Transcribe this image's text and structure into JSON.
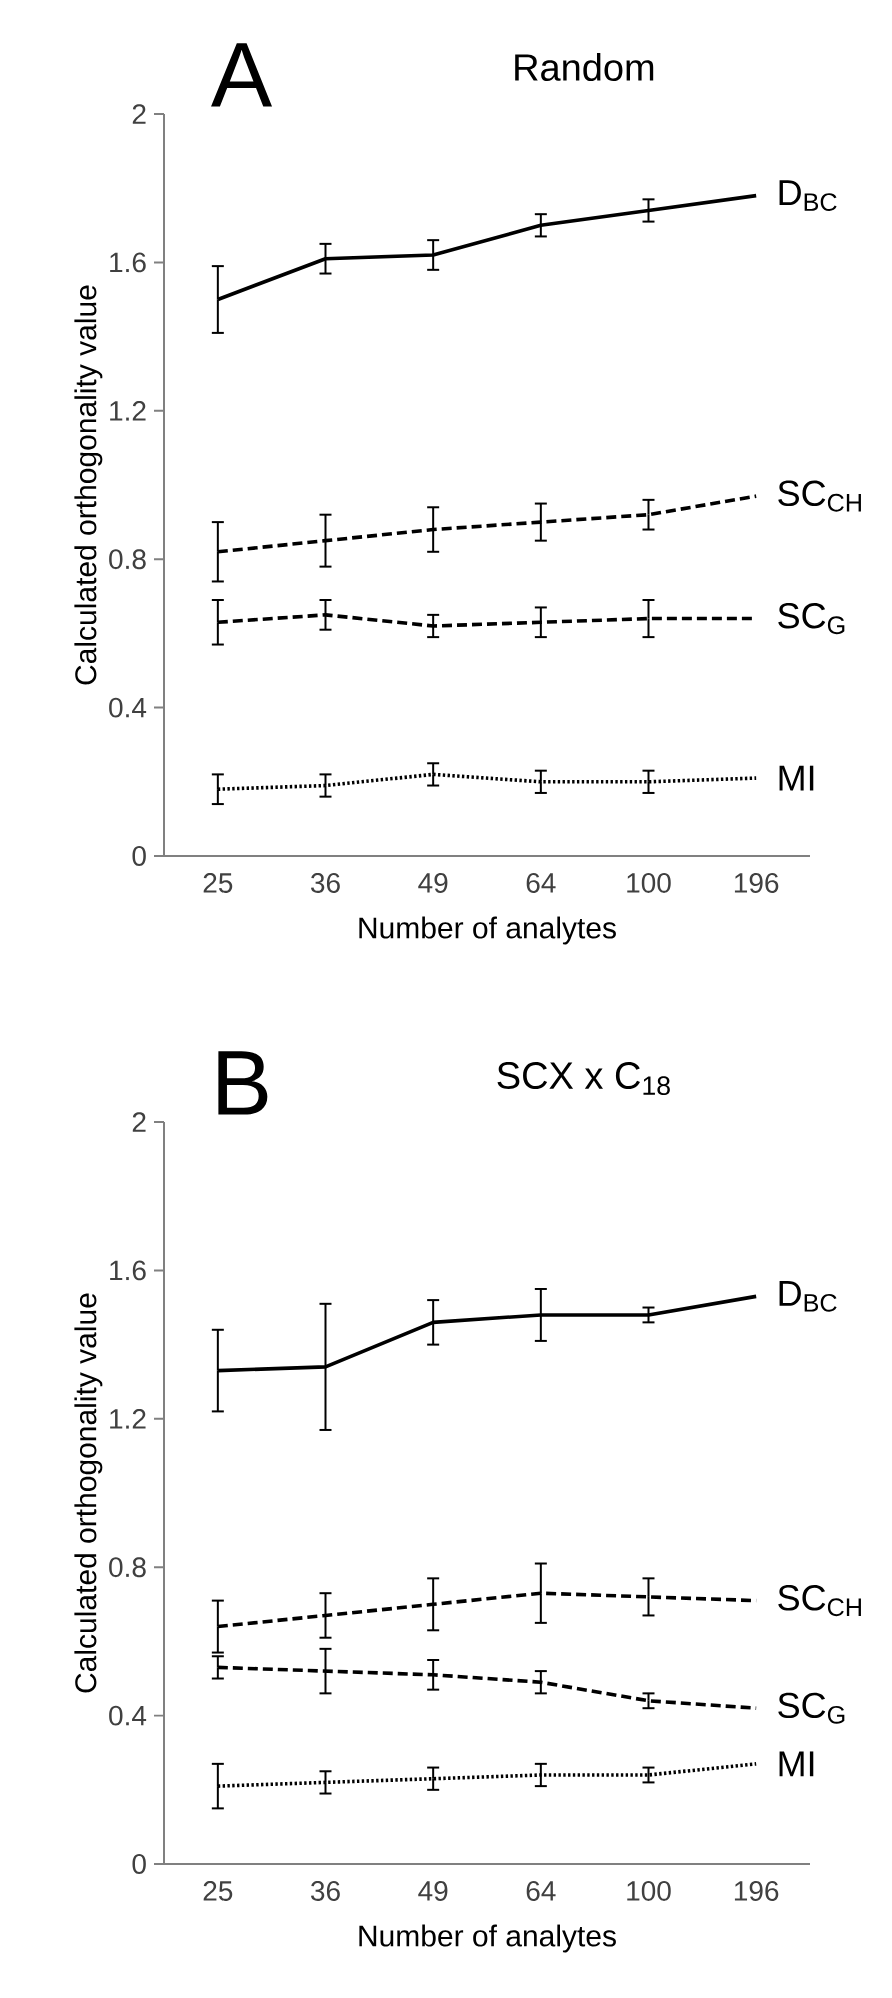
{
  "chart_data": [
    {
      "type": "line",
      "title": "A",
      "subtitle": "Random",
      "xlabel": "Number of analytes",
      "ylabel": "Calculated orthogonality value",
      "categories": [
        "25",
        "36",
        "49",
        "64",
        "100",
        "196"
      ],
      "ylim": [
        0,
        2
      ],
      "yticks": [
        0,
        0.4,
        0.8,
        1.2,
        1.6,
        2
      ],
      "legend": false,
      "grid": false,
      "series": [
        {
          "name": "D$_{BC}$",
          "color": "#000000",
          "line_style": "solid",
          "values": [
            1.5,
            1.61,
            1.62,
            1.7,
            1.74,
            1.78
          ],
          "errors": [
            0.09,
            0.04,
            0.04,
            0.03,
            0.03,
            null
          ]
        },
        {
          "name": "SC$_{CH}$",
          "color": "#000000",
          "line_style": "dashed",
          "values": [
            0.82,
            0.85,
            0.88,
            0.9,
            0.92,
            0.97
          ],
          "errors": [
            0.08,
            0.07,
            0.06,
            0.05,
            0.04,
            null
          ]
        },
        {
          "name": "SC$_{G}$",
          "color": "#000000",
          "line_style": "dashed",
          "values": [
            0.63,
            0.65,
            0.62,
            0.63,
            0.64,
            0.64
          ],
          "errors": [
            0.06,
            0.04,
            0.03,
            0.04,
            0.05,
            null
          ]
        },
        {
          "name": "MI",
          "color": "#000000",
          "line_style": "dotted",
          "values": [
            0.18,
            0.19,
            0.22,
            0.2,
            0.2,
            0.21
          ],
          "errors": [
            0.04,
            0.03,
            0.03,
            0.03,
            0.03,
            null
          ]
        }
      ]
    },
    {
      "type": "line",
      "title": "B",
      "subtitle": "SCX x C$_{18}$",
      "xlabel": "Number of analytes",
      "ylabel": "Calculated orthogonality value",
      "categories": [
        "25",
        "36",
        "49",
        "64",
        "100",
        "196"
      ],
      "ylim": [
        0,
        2
      ],
      "yticks": [
        0,
        0.4,
        0.8,
        1.2,
        1.6,
        2
      ],
      "legend": false,
      "grid": false,
      "series": [
        {
          "name": "D$_{BC}$",
          "color": "#000000",
          "line_style": "solid",
          "values": [
            1.33,
            1.34,
            1.46,
            1.48,
            1.48,
            1.53
          ],
          "errors": [
            0.11,
            0.17,
            0.06,
            0.07,
            0.02,
            null
          ]
        },
        {
          "name": "SC$_{CH}$",
          "color": "#000000",
          "line_style": "dashed",
          "values": [
            0.64,
            0.67,
            0.7,
            0.73,
            0.72,
            0.71
          ],
          "errors": [
            0.07,
            0.06,
            0.07,
            0.08,
            0.05,
            null
          ]
        },
        {
          "name": "SC$_{G}$",
          "color": "#000000",
          "line_style": "dashed",
          "values": [
            0.53,
            0.52,
            0.51,
            0.49,
            0.44,
            0.42
          ],
          "errors": [
            0.03,
            0.06,
            0.04,
            0.03,
            0.02,
            null
          ]
        },
        {
          "name": "MI",
          "color": "#000000",
          "line_style": "dotted",
          "values": [
            0.21,
            0.22,
            0.23,
            0.24,
            0.24,
            0.27
          ],
          "errors": [
            0.06,
            0.03,
            0.03,
            0.03,
            0.02,
            null
          ]
        }
      ]
    }
  ]
}
